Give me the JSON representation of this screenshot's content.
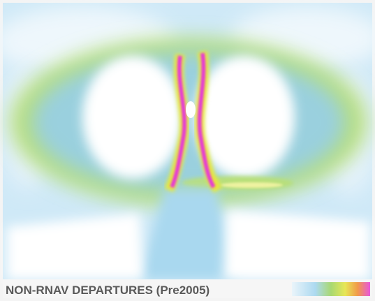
{
  "title": "NON-RNAV DEPARTURES (Pre2005)"
}
